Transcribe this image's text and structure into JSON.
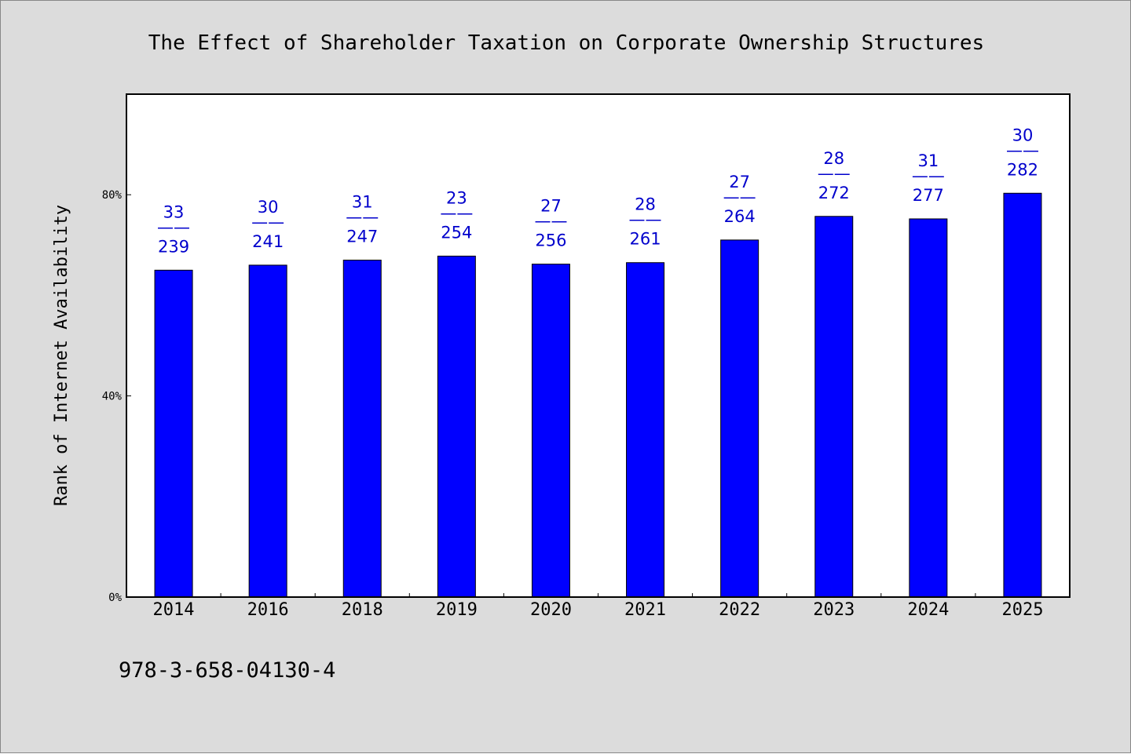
{
  "chart_data": {
    "type": "bar",
    "title": "The Effect of Shareholder Taxation on Corporate Ownership Structures",
    "ylabel": "Rank of Internet Availability",
    "xlabel": "",
    "categories": [
      "2014",
      "2016",
      "2018",
      "2019",
      "2020",
      "2021",
      "2022",
      "2023",
      "2024",
      "2025"
    ],
    "values": [
      65.0,
      66.0,
      67.0,
      67.8,
      66.2,
      66.5,
      71.0,
      75.7,
      75.2,
      80.3
    ],
    "labels_top": [
      "33",
      "30",
      "31",
      "23",
      "27",
      "28",
      "27",
      "28",
      "31",
      "30"
    ],
    "labels_bottom": [
      "239",
      "241",
      "247",
      "254",
      "256",
      "261",
      "264",
      "272",
      "277",
      "282"
    ],
    "label_separator": "——",
    "ylim": [
      0,
      100
    ],
    "yticks": [
      0,
      40,
      80
    ],
    "ytick_labels": [
      "0%",
      "40%",
      "80%"
    ],
    "grid": false,
    "legend": "none",
    "bar_color": "#0000ff",
    "label_color": "#0000cc",
    "background_color": "#dcdcdc",
    "plot_background": "#ffffff"
  },
  "footer": {
    "isbn": "978-3-658-04130-4"
  }
}
